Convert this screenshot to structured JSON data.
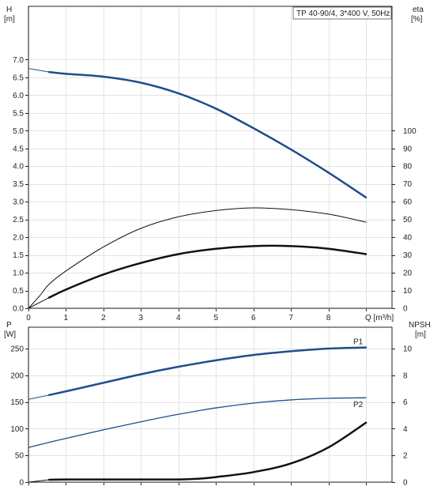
{
  "chart_data": [
    {
      "id": "upper",
      "type": "line",
      "title": "TP 40-90/4, 3*400 V, 50Hz",
      "x": {
        "label": "Q [m³/h]",
        "range": [
          0,
          9
        ],
        "ticks": [
          0,
          1,
          2,
          3,
          4,
          5,
          6,
          7,
          8,
          9
        ],
        "tick_labels": [
          "0",
          "1",
          "2",
          "3",
          "4",
          "5",
          "6",
          "7",
          "8",
          "Q [m³/h]"
        ]
      },
      "y_left": {
        "label": "H",
        "unit": "[m]",
        "range": [
          0,
          8.5
        ],
        "ticks": [
          0,
          0.5,
          1,
          1.5,
          2,
          2.5,
          3,
          3.5,
          4,
          4.5,
          5,
          5.5,
          6,
          6.5,
          7
        ],
        "tick_labels": [
          "0.0",
          "0.5",
          "1.0",
          "1.5",
          "2.0",
          "2.5",
          "3.0",
          "3.5",
          "4.0",
          "4.5",
          "5.0",
          "5.5",
          "6.0",
          "6.5",
          "7.0"
        ]
      },
      "y_right": {
        "label": "eta",
        "unit": "[%]",
        "range": [
          0,
          170
        ],
        "ticks": [
          0,
          10,
          20,
          30,
          40,
          50,
          60,
          70,
          80,
          90,
          100
        ],
        "tick_labels": [
          "0",
          "10",
          "20",
          "30",
          "40",
          "50",
          "60",
          "70",
          "80",
          "90",
          "100"
        ]
      },
      "grid": true,
      "series": [
        {
          "axis": "left",
          "color": "#1f4e8c",
          "width": 1,
          "values": [
            [
              0,
              6.75
            ],
            [
              0.55,
              6.65
            ]
          ]
        },
        {
          "axis": "left",
          "color": "#1f4e8c",
          "width": 2.5,
          "values": [
            [
              0.55,
              6.65
            ],
            [
              1,
              6.6
            ],
            [
              2,
              6.52
            ],
            [
              3,
              6.35
            ],
            [
              4,
              6.05
            ],
            [
              5,
              5.62
            ],
            [
              6,
              5.07
            ],
            [
              7,
              4.47
            ],
            [
              8,
              3.82
            ],
            [
              9,
              3.12
            ]
          ]
        },
        {
          "axis": "right",
          "color": "#111111",
          "width": 1,
          "values": [
            [
              0,
              0
            ],
            [
              0.3,
              7
            ],
            [
              0.55,
              13.5
            ],
            [
              1,
              21
            ],
            [
              2,
              34.5
            ],
            [
              3,
              45
            ],
            [
              4,
              51.5
            ],
            [
              5,
              55
            ],
            [
              6,
              56.5
            ],
            [
              7,
              55.5
            ],
            [
              8,
              53
            ],
            [
              9,
              48.5
            ]
          ]
        },
        {
          "axis": "right",
          "color": "#111111",
          "width": 1,
          "values": [
            [
              0,
              0
            ],
            [
              0.55,
              6
            ]
          ]
        },
        {
          "axis": "right",
          "color": "#111111",
          "width": 2.5,
          "values": [
            [
              0.55,
              6
            ],
            [
              1,
              10.5
            ],
            [
              2,
              19
            ],
            [
              3,
              25.5
            ],
            [
              4,
              30.5
            ],
            [
              5,
              33.5
            ],
            [
              6,
              35
            ],
            [
              7,
              35
            ],
            [
              8,
              33.5
            ],
            [
              9,
              30.5
            ]
          ]
        }
      ]
    },
    {
      "id": "lower",
      "type": "line",
      "x": {
        "range": [
          0,
          9
        ],
        "ticks": [
          0,
          1,
          2,
          3,
          4,
          5,
          6,
          7,
          8,
          9
        ]
      },
      "y_left": {
        "label": "P",
        "unit": "[W]",
        "range": [
          0,
          290
        ],
        "ticks": [
          0,
          50,
          100,
          150,
          200,
          250
        ],
        "tick_labels": [
          "0",
          "50",
          "100",
          "150",
          "200",
          "250"
        ]
      },
      "y_right": {
        "label": "NPSH",
        "unit": "[m]",
        "range": [
          0,
          11.6
        ],
        "ticks": [
          0,
          2,
          4,
          6,
          8,
          10
        ],
        "tick_labels": [
          "0",
          "2",
          "4",
          "6",
          "8",
          "10"
        ]
      },
      "grid": true,
      "series": [
        {
          "name": "P1",
          "axis": "left",
          "color": "#1f4e8c",
          "width": 1,
          "values": [
            [
              0,
              155
            ],
            [
              0.55,
              163
            ]
          ]
        },
        {
          "name": "P1",
          "axis": "left",
          "color": "#1f4e8c",
          "width": 2.5,
          "values": [
            [
              0.55,
              163
            ],
            [
              1,
              170
            ],
            [
              2,
              186
            ],
            [
              3,
              202
            ],
            [
              4,
              216
            ],
            [
              5,
              228
            ],
            [
              6,
              238
            ],
            [
              7,
              245
            ],
            [
              8,
              250
            ],
            [
              9,
              252
            ]
          ]
        },
        {
          "name": "P2",
          "axis": "left",
          "color": "#1f4e8c",
          "width": 1.3,
          "values": [
            [
              0,
              65
            ],
            [
              1,
              82
            ],
            [
              2,
              98
            ],
            [
              3,
              113
            ],
            [
              4,
              127
            ],
            [
              5,
              139
            ],
            [
              6,
              148
            ],
            [
              7,
              154
            ],
            [
              8,
              157
            ],
            [
              9,
              158
            ]
          ]
        },
        {
          "axis": "right",
          "color": "#111111",
          "width": 1,
          "values": [
            [
              0,
              0
            ],
            [
              0.55,
              0.18
            ]
          ]
        },
        {
          "axis": "right",
          "color": "#111111",
          "width": 2.5,
          "values": [
            [
              0.55,
              0.18
            ],
            [
              1,
              0.2
            ],
            [
              2,
              0.2
            ],
            [
              3,
              0.2
            ],
            [
              4,
              0.2
            ],
            [
              4.5,
              0.25
            ],
            [
              5,
              0.38
            ],
            [
              6,
              0.75
            ],
            [
              7,
              1.4
            ],
            [
              8,
              2.6
            ],
            [
              9,
              4.45
            ]
          ]
        }
      ],
      "labels": [
        "P1",
        "P2"
      ]
    }
  ]
}
